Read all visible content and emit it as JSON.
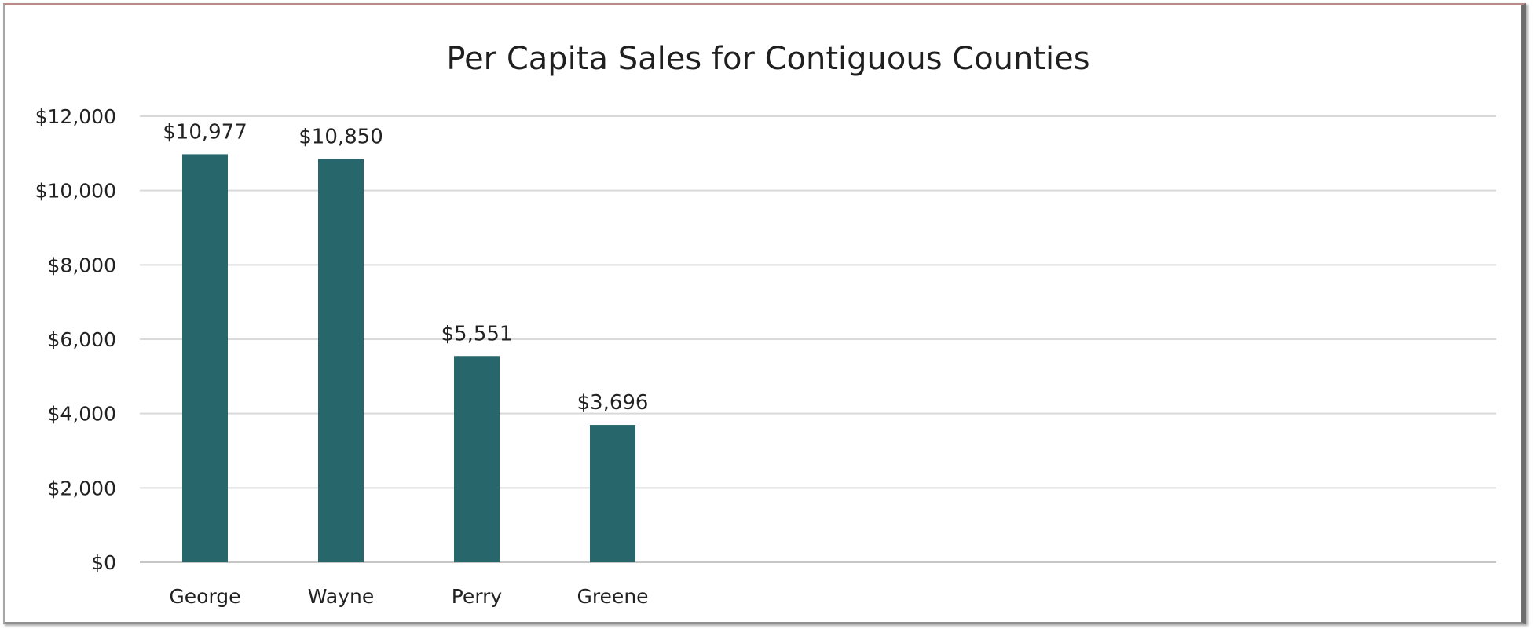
{
  "chart_data": {
    "type": "bar",
    "title": "Per Capita Sales for Contiguous Counties",
    "categories": [
      "George",
      "Wayne",
      "Perry",
      "Greene"
    ],
    "values": [
      10977,
      10850,
      5551,
      3696
    ],
    "data_labels": [
      "$10,977",
      "$10,850",
      "$5,551",
      "$3,696"
    ],
    "ylim": [
      0,
      12000
    ],
    "yticks": [
      0,
      2000,
      4000,
      6000,
      8000,
      10000,
      12000
    ],
    "ytick_labels": [
      "$0",
      "$2,000",
      "$4,000",
      "$6,000",
      "$8,000",
      "$10,000",
      "$12,000"
    ],
    "xlabel": "",
    "ylabel": "",
    "grid": true,
    "legend": "none",
    "bar_color": "#27666b"
  }
}
